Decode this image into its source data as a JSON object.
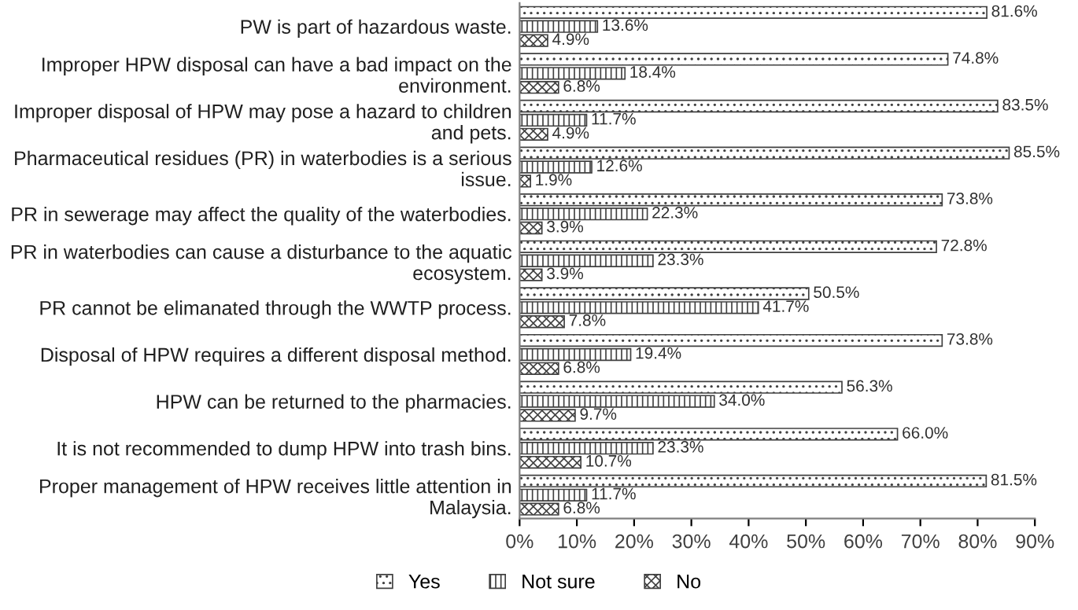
{
  "chart_data": {
    "type": "bar",
    "orientation": "horizontal",
    "categories": [
      "PW is part of hazardous waste.",
      "Improper HPW disposal can have a bad impact on the\nenvironment.",
      "Improper disposal of HPW may pose a hazard to children\nand pets.",
      "Pharmaceutical residues (PR) in waterbodies is a serious\nissue.",
      "PR in sewerage may affect the quality of the waterbodies.",
      "PR in waterbodies can cause a disturbance to the aquatic\necosystem.",
      "PR cannot be elimanated through the WWTP process.",
      "Disposal of HPW requires a different disposal method.",
      "HPW can be returned to the pharmacies.",
      "It is not recommended to dump HPW into trash bins.",
      "Proper management of HPW receives little attention in\nMalaysia."
    ],
    "series": [
      {
        "name": "Yes",
        "color": "#404040",
        "values": [
          81.6,
          74.8,
          83.5,
          85.5,
          73.8,
          72.8,
          50.5,
          73.8,
          56.3,
          66.0,
          81.5
        ],
        "value_labels": [
          "81.6%",
          "74.8%",
          "83.5%",
          "85.5%",
          "73.8%",
          "72.8%",
          "50.5%",
          "73.8%",
          "56.3%",
          "66.0%",
          "81.5%"
        ]
      },
      {
        "name": "Not sure",
        "color": "#404040",
        "values": [
          13.6,
          18.4,
          11.7,
          12.6,
          22.3,
          23.3,
          41.7,
          19.4,
          34.0,
          23.3,
          11.7
        ],
        "value_labels": [
          "13.6%",
          "18.4%",
          "11.7%",
          "12.6%",
          "22.3%",
          "23.3%",
          "41.7%",
          "19.4%",
          "34.0%",
          "23.3%",
          "11.7%"
        ]
      },
      {
        "name": "No",
        "color": "#404040",
        "values": [
          4.9,
          6.8,
          4.9,
          1.9,
          3.9,
          3.9,
          7.8,
          6.8,
          9.7,
          10.7,
          6.8
        ],
        "value_labels": [
          "4.9%",
          "6.8%",
          "4.9%",
          "1.9%",
          "3.9%",
          "3.9%",
          "7.8%",
          "6.8%",
          "9.7%",
          "10.7%",
          "6.8%"
        ]
      }
    ],
    "xlim": [
      0,
      90
    ],
    "xticks": [
      {
        "value": 0,
        "label": "0%"
      },
      {
        "value": 10,
        "label": "10%"
      },
      {
        "value": 20,
        "label": "20%"
      },
      {
        "value": 30,
        "label": "30%"
      },
      {
        "value": 40,
        "label": "40%"
      },
      {
        "value": 50,
        "label": "50%"
      },
      {
        "value": 60,
        "label": "60%"
      },
      {
        "value": 70,
        "label": "70%"
      },
      {
        "value": 80,
        "label": "80%"
      },
      {
        "value": 90,
        "label": "90%"
      }
    ],
    "legend": "bottom",
    "grid": false
  }
}
